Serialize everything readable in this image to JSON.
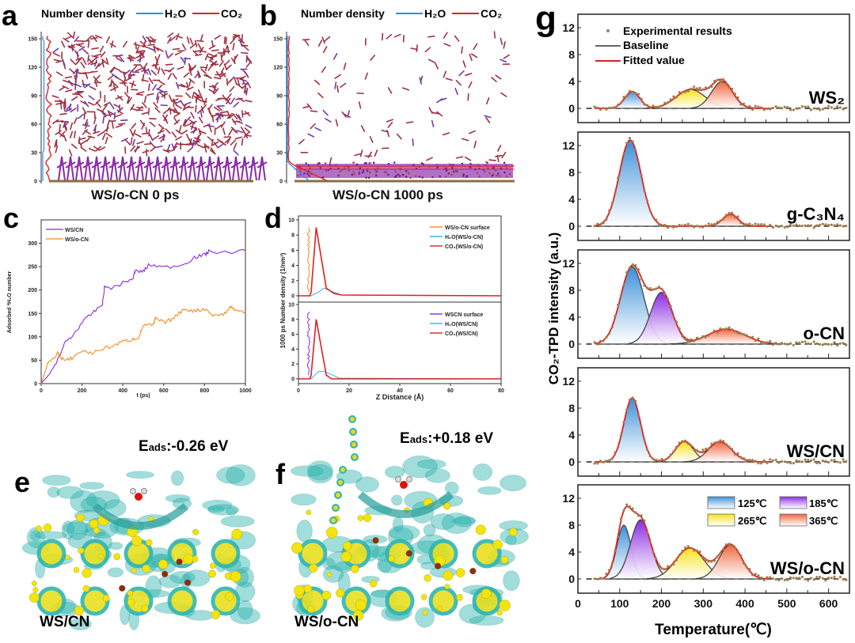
{
  "panels": {
    "a": {
      "letter": "a",
      "legend_title": "Number density",
      "h2o": "H₂O",
      "co2": "CO₂",
      "yticks": [
        0,
        30,
        60,
        90,
        120,
        150
      ],
      "caption": "WS/o-CN 0 ps"
    },
    "b": {
      "letter": "b",
      "legend_title": "Number density",
      "h2o": "H₂O",
      "co2": "CO₂",
      "yticks": [
        0,
        30,
        60,
        90,
        120,
        150
      ],
      "caption": "WS/o-CN 1000 ps"
    },
    "c": {
      "letter": "c"
    },
    "d": {
      "letter": "d"
    },
    "e": {
      "letter": "e",
      "e_symbol": "E",
      "e_sub": "ads",
      "e_value": ":-0.26 eV",
      "caption": "WS/CN"
    },
    "f": {
      "letter": "f",
      "e_symbol": "E",
      "e_sub": "ads",
      "e_value": ":+0.18 eV",
      "caption": "WS/o-CN"
    },
    "g": {
      "letter": "g"
    }
  },
  "colors": {
    "h2o": "#1e90ff",
    "co2": "#e02020",
    "ws_cn": "#8a2be2",
    "ws_ocn": "#f08c1e",
    "water_d": "#34b4e0",
    "blue": "#3a8fd8",
    "purple": "#8a2be2",
    "yellow": "#f5e31a",
    "orange": "#f0643c"
  },
  "chart_data": [
    {
      "id": "c",
      "type": "line",
      "xlabel": "t (ps)",
      "ylabel": "Adsorbed *H₂O number",
      "xlim": [
        0,
        1000
      ],
      "ylim": [
        0,
        350
      ],
      "xticks": [
        0,
        200,
        400,
        600,
        800,
        1000
      ],
      "yticks": [
        0,
        50,
        100,
        150,
        200,
        250,
        300
      ],
      "legend_position": "top-left",
      "series": [
        {
          "name": "WS/CN",
          "x": [
            0,
            50,
            100,
            120,
            150,
            200,
            250,
            300,
            310,
            350,
            400,
            450,
            460,
            500,
            530,
            600,
            700,
            750,
            800,
            820,
            900,
            1000
          ],
          "y": [
            0,
            25,
            70,
            90,
            100,
            130,
            150,
            170,
            205,
            205,
            215,
            225,
            240,
            240,
            255,
            248,
            255,
            270,
            275,
            282,
            280,
            285
          ]
        },
        {
          "name": "WS/o-CN",
          "x": [
            0,
            30,
            80,
            100,
            120,
            150,
            200,
            250,
            300,
            350,
            400,
            450,
            480,
            500,
            550,
            560,
            600,
            650,
            700,
            750,
            800,
            850,
            900,
            930,
            950,
            1000
          ],
          "y": [
            0,
            40,
            65,
            55,
            48,
            55,
            70,
            65,
            75,
            80,
            90,
            95,
            100,
            125,
            125,
            140,
            130,
            140,
            160,
            155,
            160,
            145,
            150,
            165,
            155,
            155
          ]
        }
      ]
    },
    {
      "id": "d",
      "type": "line",
      "xlabel": "Z Distance (Å)",
      "ylabel": "1000 ps Number density (1/nm³)",
      "xlim": [
        0,
        80
      ],
      "ylim": [
        0,
        10
      ],
      "xticks": [
        0,
        20,
        40,
        60,
        80
      ],
      "yticks": [
        0,
        2,
        4,
        6,
        8,
        10
      ],
      "subplots": [
        {
          "legend_position": "top-right",
          "series": [
            {
              "name": "WS/o-CN surface",
              "x": [
                3.5,
                4.5
              ],
              "y": [
                0.5,
                9.2
              ]
            },
            {
              "name": "H₂O(WS/o-CN)",
              "x": [
                0,
                5,
                8,
                10,
                13,
                17,
                80
              ],
              "y": [
                0,
                0,
                0.5,
                1.0,
                0.6,
                0.1,
                0
              ]
            },
            {
              "name": "CO₂(WS/o-CN)",
              "x": [
                0,
                4.5,
                5,
                7,
                11,
                14,
                17,
                80
              ],
              "y": [
                0,
                0,
                0.5,
                9.0,
                1.0,
                0.3,
                0.1,
                0
              ]
            }
          ]
        },
        {
          "legend_position": "top-right",
          "series": [
            {
              "name": "WSCN surface",
              "x": [
                3.5,
                4.5
              ],
              "y": [
                0.5,
                9.2
              ]
            },
            {
              "name": "H₂O(WS/CN)",
              "x": [
                0,
                5,
                8,
                10,
                13,
                16,
                80
              ],
              "y": [
                0,
                0,
                1.0,
                1.0,
                0.6,
                0.1,
                0
              ]
            },
            {
              "name": "CO₂(WS/CN)",
              "x": [
                0,
                4.5,
                5,
                7,
                11,
                13,
                80
              ],
              "y": [
                0,
                0,
                0.5,
                8.0,
                0.5,
                0,
                0
              ]
            }
          ]
        }
      ]
    },
    {
      "id": "g",
      "type": "area",
      "xlabel": "Temperature(℃)",
      "ylabel": "CO₂-TPD intensity (a.u.)",
      "xlim": [
        0,
        650
      ],
      "ylim": [
        -2,
        14
      ],
      "xticks": [
        0,
        100,
        200,
        300,
        400,
        500,
        600
      ],
      "yticks": [
        0,
        4,
        8,
        12
      ],
      "legend": [
        "Experimental results",
        "Baseline",
        "Fitted value"
      ],
      "peak_legend": [
        {
          "label": "125℃",
          "color": "blue"
        },
        {
          "label": "185℃",
          "color": "purple"
        },
        {
          "label": "265℃",
          "color": "yellow"
        },
        {
          "label": "365℃",
          "color": "orange"
        }
      ],
      "subplots": [
        {
          "sample": "WS₂",
          "peaks": [
            {
              "center": 130,
              "height": 2.5,
              "sigma": 18,
              "color": "blue"
            },
            {
              "center": 270,
              "height": 2.8,
              "sigma": 35,
              "color": "yellow"
            },
            {
              "center": 345,
              "height": 4.0,
              "sigma": 25,
              "color": "orange"
            }
          ]
        },
        {
          "sample": "g-C₃N₄",
          "peaks": [
            {
              "center": 125,
              "height": 12.8,
              "sigma": 26,
              "color": "blue"
            },
            {
              "center": 365,
              "height": 1.8,
              "sigma": 18,
              "color": "orange"
            }
          ]
        },
        {
          "sample": "o-CN",
          "peaks": [
            {
              "center": 130,
              "height": 11.5,
              "sigma": 28,
              "color": "blue"
            },
            {
              "center": 200,
              "height": 7.7,
              "sigma": 26,
              "color": "purple"
            },
            {
              "center": 355,
              "height": 2.2,
              "sigma": 45,
              "color": "orange"
            }
          ]
        },
        {
          "sample": "WS/CN",
          "peaks": [
            {
              "center": 130,
              "height": 9.5,
              "sigma": 20,
              "color": "blue"
            },
            {
              "center": 255,
              "height": 3.0,
              "sigma": 22,
              "color": "yellow"
            },
            {
              "center": 340,
              "height": 3.0,
              "sigma": 28,
              "color": "orange"
            }
          ]
        },
        {
          "sample": "WS/o-CN",
          "peaks": [
            {
              "center": 110,
              "height": 8.0,
              "sigma": 17,
              "color": "blue"
            },
            {
              "center": 150,
              "height": 8.8,
              "sigma": 24,
              "color": "purple"
            },
            {
              "center": 268,
              "height": 4.6,
              "sigma": 34,
              "color": "yellow"
            },
            {
              "center": 365,
              "height": 5.1,
              "sigma": 27,
              "color": "orange"
            }
          ]
        }
      ]
    }
  ]
}
